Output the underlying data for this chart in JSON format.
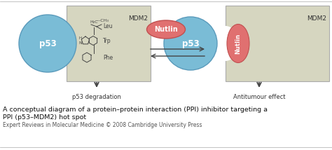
{
  "fig_bg": "#ffffff",
  "box_color": "#d6d6c0",
  "box_edge": "#aaaaaa",
  "p53_color": "#7abcd6",
  "p53_edge": "#5a9abb",
  "nutlin_color": "#e07070",
  "nutlin_edge": "#c05050",
  "chem_color": "#444444",
  "text_color": "#333333",
  "mdm2_text": "MDM2",
  "p53_text": "p53",
  "nutlin_text": "Nutlin",
  "leu_text": "Leu",
  "trp_text": "Trp",
  "phe_text": "Phe",
  "degradation_text": "p53 degradation",
  "antitumour_text": "Antitumour effect",
  "caption_line1": "A conceptual diagram of a protein–protein interaction (PPI) inhibitor targeting a",
  "caption_line2": "PPI (p53–MDM2) hot spot",
  "caption_line3": "Expert Reviews in Molecular Medicine © 2008 Cambridge University Press",
  "arrow_color": "#444444"
}
